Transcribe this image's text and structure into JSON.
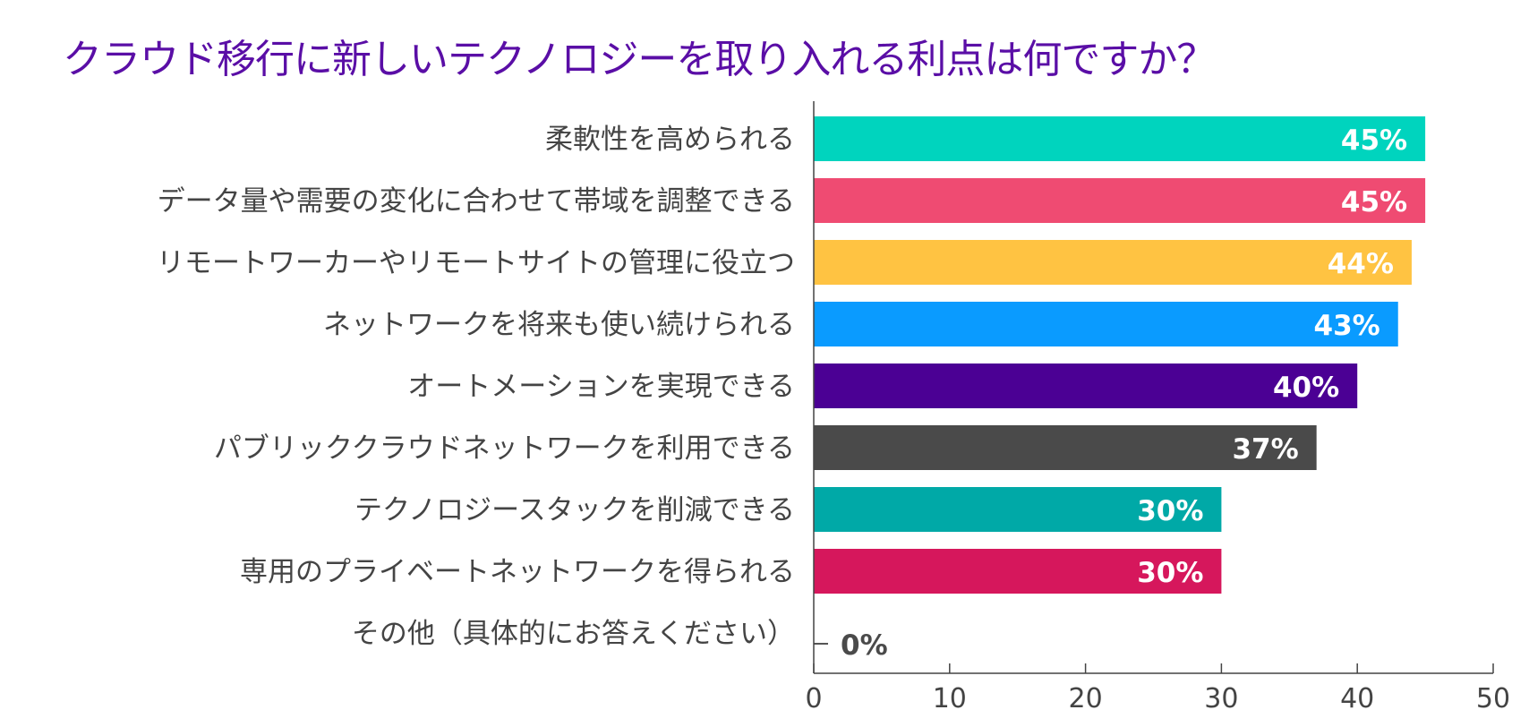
{
  "chart_data": {
    "type": "bar",
    "orientation": "horizontal",
    "title": "クラウド移行に新しいテクノロジーを取り入れる利点は何ですか？",
    "xlabel": "",
    "ylabel": "",
    "xlim": [
      0,
      50
    ],
    "xticks": [
      "0",
      "10",
      "20",
      "30",
      "40",
      "50"
    ],
    "grid": false,
    "categories": [
      "柔軟性を高められる",
      "データ量や需要の変化に合わせて帯域を調整できる",
      "リモートワーカーやリモートサイトの管理に役立つ",
      "ネットワークを将来も使い続けられる",
      "オートメーションを実現できる",
      "パブリッククラウドネットワークを利用できる",
      "テクノロジースタックを削減できる",
      "専用のプライベートネットワークを得られる",
      "その他（具体的にお答えください）"
    ],
    "values": [
      45,
      45,
      44,
      43,
      40,
      37,
      30,
      30,
      0
    ],
    "value_labels": [
      "45%",
      "45%",
      "44%",
      "43%",
      "40%",
      "37%",
      "30%",
      "30%",
      "0%"
    ],
    "colors": [
      "#00d4be",
      "#ef4b72",
      "#ffc342",
      "#0a9bff",
      "#4b0094",
      "#4a4a4a",
      "#00a9a7",
      "#d6175c",
      "#4a4a4a"
    ]
  }
}
